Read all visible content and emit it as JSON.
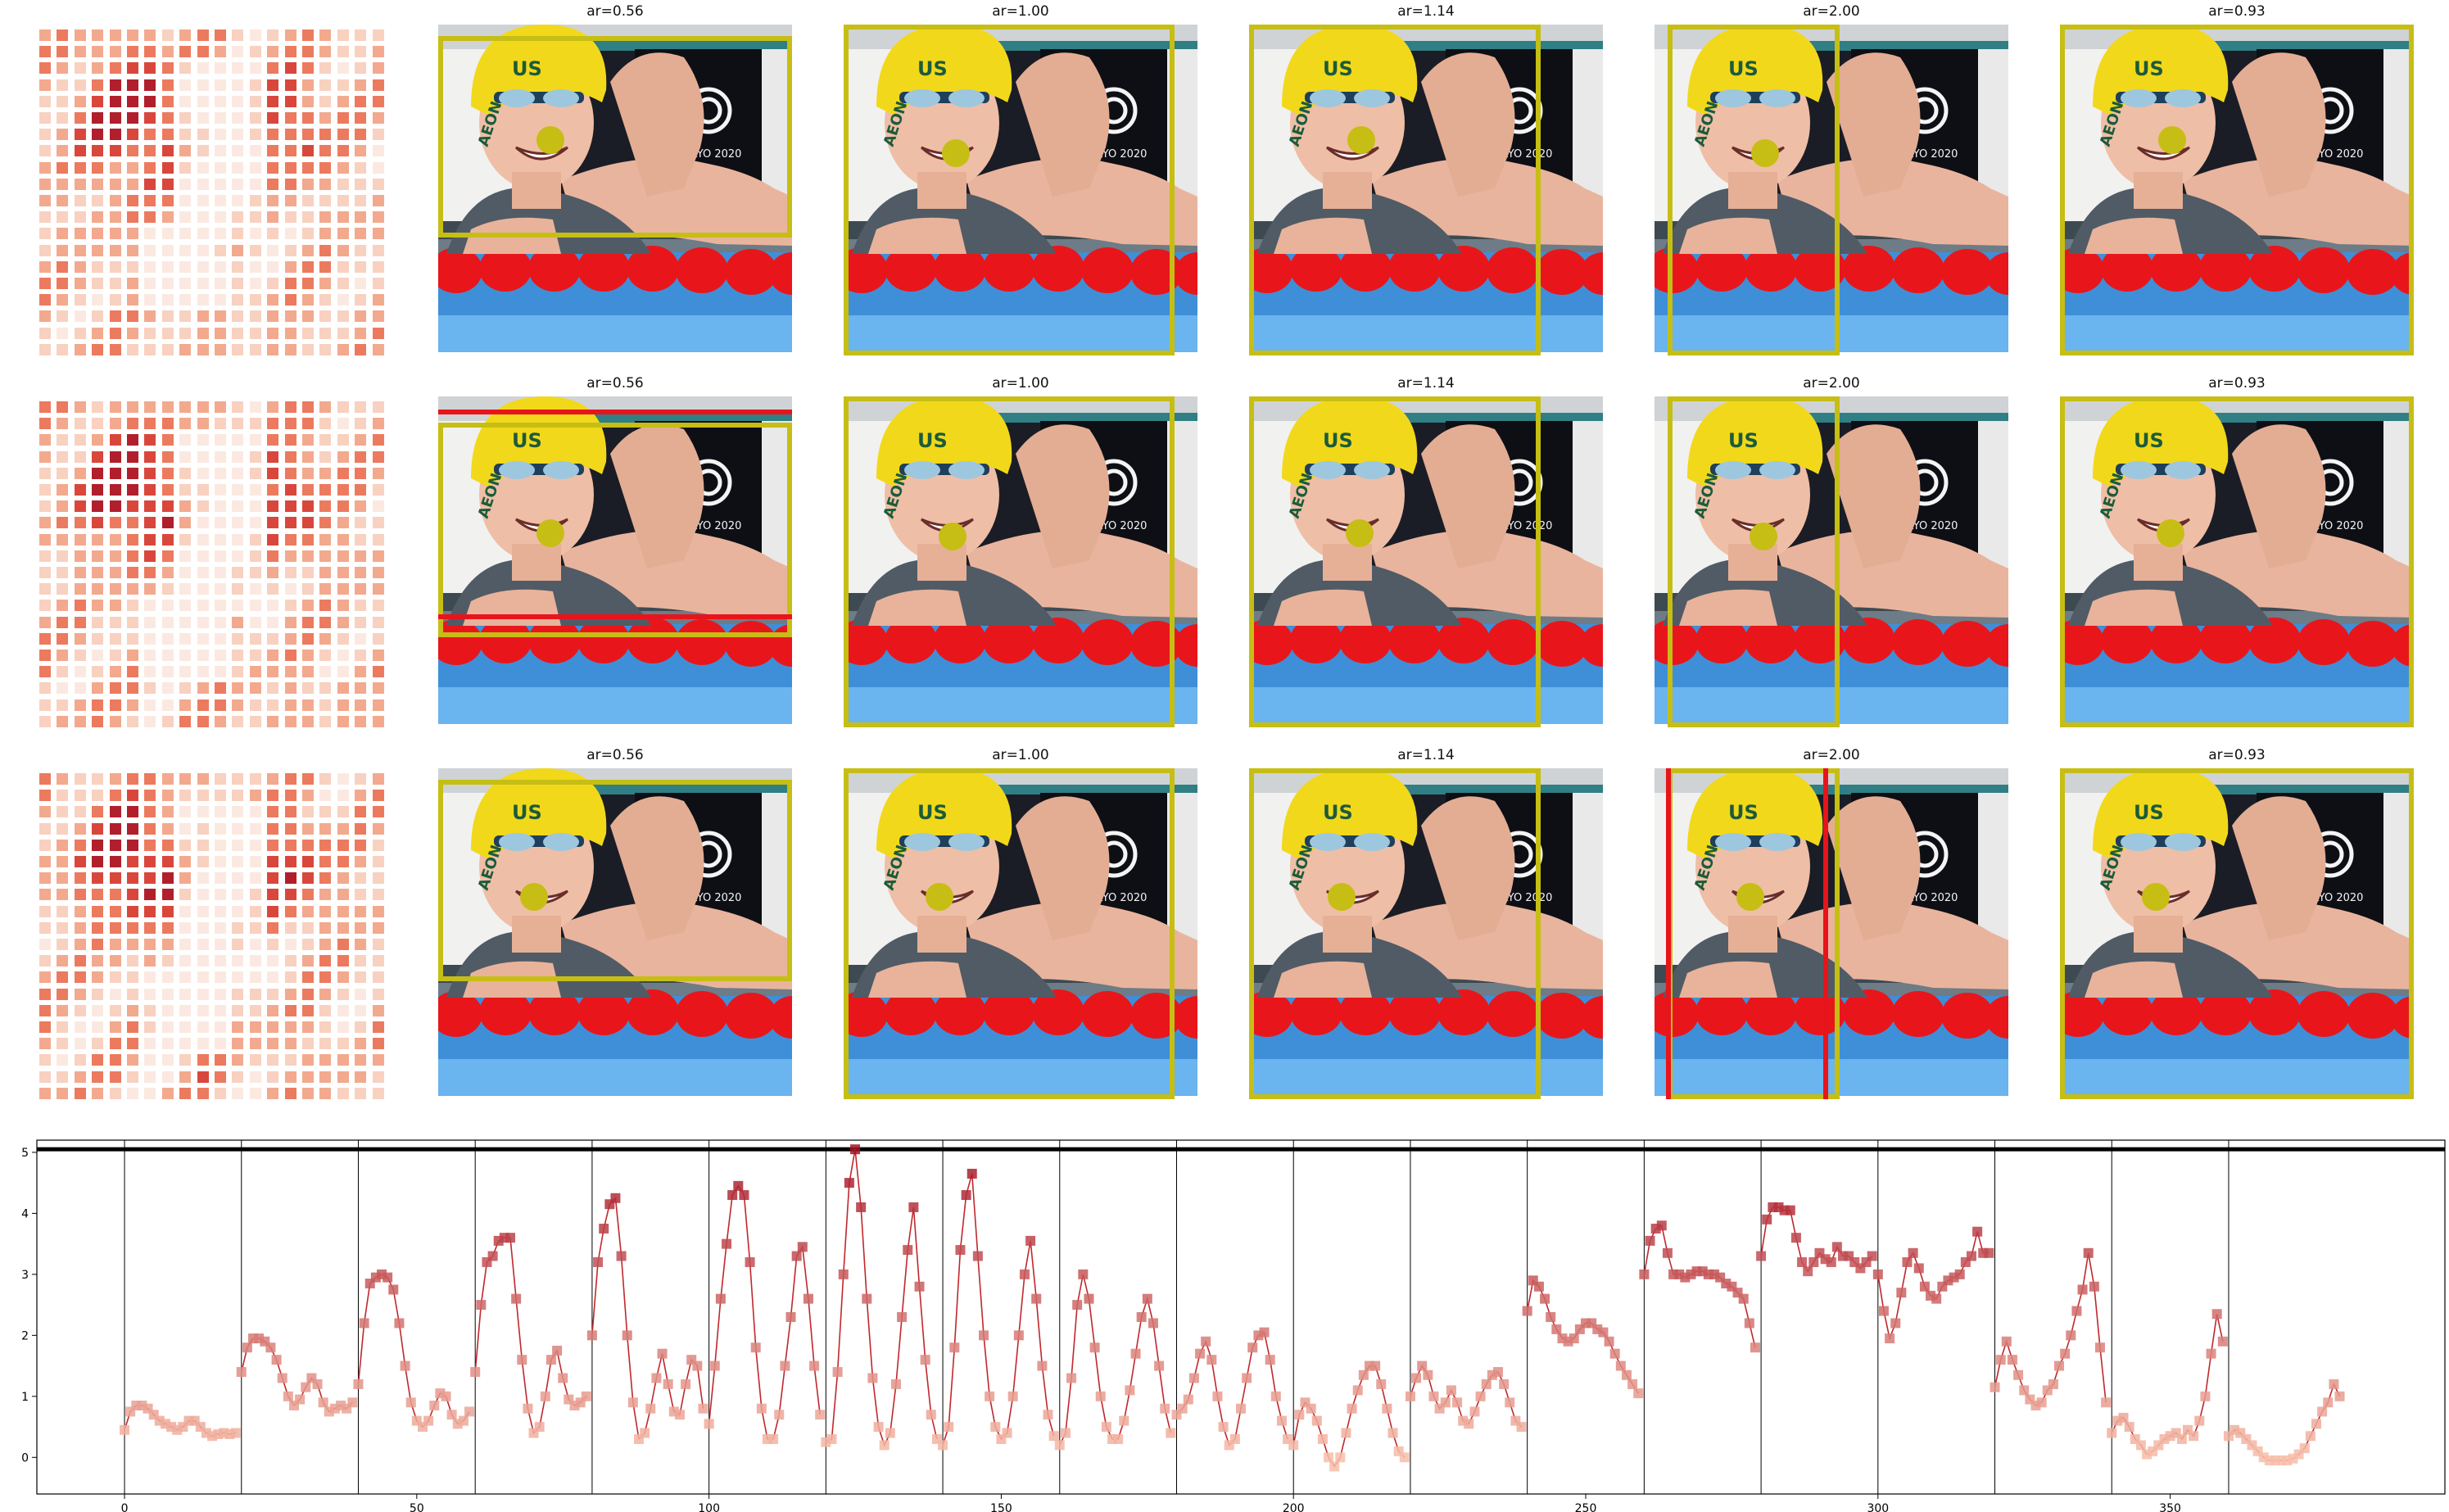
{
  "panel_titles": [
    "ar=0.56",
    "ar=1.00",
    "ar=1.14",
    "ar=2.00",
    "ar=0.93"
  ],
  "photo_text": {
    "cap_text": "US",
    "cap_name": "AEON",
    "logo_text": "TOKYO 2020"
  },
  "colors": {
    "box_yellow": "#c6be14",
    "box_red": "#e8141b",
    "line": "#c0282d",
    "marker_light": "#f7b49f",
    "marker_dark": "#b2182b"
  },
  "chart_data": {
    "type": "line",
    "title": "",
    "xlabel": "",
    "ylabel": "",
    "xlim": [
      -15,
      397
    ],
    "ylim": [
      -0.6,
      5.2
    ],
    "xticks": [
      0,
      50,
      100,
      150,
      200,
      250,
      300,
      350
    ],
    "yticks": [
      0,
      1,
      2,
      3,
      4,
      5
    ],
    "threshold_line": 5.05,
    "segment_boundaries": [
      0,
      20,
      40,
      60,
      80,
      100,
      120,
      140,
      160,
      180,
      200,
      220,
      240,
      260,
      280,
      300,
      320,
      340,
      360
    ],
    "segments": [
      {
        "start": 0,
        "values": [
          0.45,
          0.75,
          0.85,
          0.85,
          0.8,
          0.7,
          0.6,
          0.55,
          0.5,
          0.45,
          0.5,
          0.6,
          0.6,
          0.5,
          0.4,
          0.35,
          0.38,
          0.4,
          0.38,
          0.4
        ]
      },
      {
        "start": 20,
        "values": [
          1.4,
          1.8,
          1.95,
          1.95,
          1.9,
          1.8,
          1.6,
          1.3,
          1.0,
          0.85,
          0.95,
          1.15,
          1.3,
          1.2,
          0.9,
          0.75,
          0.8,
          0.85,
          0.8,
          0.9
        ]
      },
      {
        "start": 40,
        "values": [
          1.2,
          2.2,
          2.85,
          2.95,
          3.0,
          2.95,
          2.75,
          2.2,
          1.5,
          0.9,
          0.6,
          0.5,
          0.6,
          0.85,
          1.05,
          1.0,
          0.7,
          0.55,
          0.6,
          0.75
        ]
      },
      {
        "start": 60,
        "values": [
          1.4,
          2.5,
          3.2,
          3.3,
          3.55,
          3.6,
          3.6,
          2.6,
          1.6,
          0.8,
          0.4,
          0.5,
          1.0,
          1.6,
          1.75,
          1.3,
          0.95,
          0.85,
          0.9,
          1.0
        ]
      },
      {
        "start": 80,
        "values": [
          2.0,
          3.2,
          3.75,
          4.15,
          4.25,
          3.3,
          2.0,
          0.9,
          0.3,
          0.4,
          0.8,
          1.3,
          1.7,
          1.2,
          0.75,
          0.7,
          1.2,
          1.6,
          1.5,
          0.8
        ]
      },
      {
        "start": 100,
        "values": [
          0.55,
          1.5,
          2.6,
          3.5,
          4.3,
          4.45,
          4.3,
          3.2,
          1.8,
          0.8,
          0.3,
          0.3,
          0.7,
          1.5,
          2.3,
          3.3,
          3.45,
          2.6,
          1.5,
          0.7
        ]
      },
      {
        "start": 120,
        "values": [
          0.25,
          0.3,
          1.4,
          3.0,
          4.5,
          5.05,
          4.1,
          2.6,
          1.3,
          0.5,
          0.2,
          0.4,
          1.2,
          2.3,
          3.4,
          4.1,
          2.8,
          1.6,
          0.7,
          0.3
        ]
      },
      {
        "start": 140,
        "values": [
          0.2,
          0.5,
          1.8,
          3.4,
          4.3,
          4.65,
          3.3,
          2.0,
          1.0,
          0.5,
          0.3,
          0.4,
          1.0,
          2.0,
          3.0,
          3.55,
          2.6,
          1.5,
          0.7,
          0.35
        ]
      },
      {
        "start": 160,
        "values": [
          0.2,
          0.4,
          1.3,
          2.5,
          3.0,
          2.6,
          1.8,
          1.0,
          0.5,
          0.3,
          0.3,
          0.6,
          1.1,
          1.7,
          2.3,
          2.6,
          2.2,
          1.5,
          0.8,
          0.4
        ]
      },
      {
        "start": 180,
        "values": [
          0.7,
          0.8,
          0.95,
          1.3,
          1.7,
          1.9,
          1.6,
          1.0,
          0.5,
          0.2,
          0.3,
          0.8,
          1.3,
          1.8,
          2.0,
          2.05,
          1.6,
          1.0,
          0.6,
          0.3
        ]
      },
      {
        "start": 200,
        "values": [
          0.2,
          0.7,
          0.9,
          0.8,
          0.6,
          0.3,
          0.0,
          -0.15,
          0.0,
          0.4,
          0.8,
          1.1,
          1.35,
          1.5,
          1.5,
          1.2,
          0.8,
          0.4,
          0.1,
          0.0
        ]
      },
      {
        "start": 220,
        "values": [
          1.0,
          1.3,
          1.5,
          1.35,
          1.0,
          0.8,
          0.9,
          1.1,
          0.9,
          0.6,
          0.55,
          0.75,
          1.0,
          1.2,
          1.35,
          1.4,
          1.2,
          0.9,
          0.6,
          0.5
        ]
      },
      {
        "start": 240,
        "values": [
          2.4,
          2.9,
          2.8,
          2.6,
          2.3,
          2.1,
          1.95,
          1.9,
          1.95,
          2.1,
          2.2,
          2.2,
          2.1,
          2.05,
          1.9,
          1.7,
          1.5,
          1.35,
          1.2,
          1.05
        ]
      },
      {
        "start": 260,
        "values": [
          3.0,
          3.55,
          3.75,
          3.8,
          3.35,
          3.0,
          3.0,
          2.95,
          3.0,
          3.05,
          3.05,
          3.0,
          3.0,
          2.95,
          2.85,
          2.8,
          2.7,
          2.6,
          2.2,
          1.8
        ]
      },
      {
        "start": 280,
        "values": [
          3.3,
          3.9,
          4.1,
          4.1,
          4.05,
          4.05,
          3.6,
          3.2,
          3.05,
          3.2,
          3.35,
          3.25,
          3.2,
          3.45,
          3.3,
          3.3,
          3.2,
          3.1,
          3.2,
          3.3
        ]
      },
      {
        "start": 300,
        "values": [
          3.0,
          2.4,
          1.95,
          2.2,
          2.7,
          3.2,
          3.35,
          3.1,
          2.8,
          2.65,
          2.6,
          2.8,
          2.9,
          2.95,
          3.0,
          3.2,
          3.3,
          3.7,
          3.35,
          3.35
        ]
      },
      {
        "start": 320,
        "values": [
          1.15,
          1.6,
          1.9,
          1.6,
          1.35,
          1.1,
          0.95,
          0.85,
          0.9,
          1.1,
          1.2,
          1.5,
          1.7,
          2.0,
          2.4,
          2.75,
          3.35,
          2.8,
          1.8,
          0.9
        ]
      },
      {
        "start": 340,
        "values": [
          0.4,
          0.6,
          0.65,
          0.5,
          0.3,
          0.2,
          0.05,
          0.1,
          0.2,
          0.3,
          0.35,
          0.4,
          0.3,
          0.45,
          0.35,
          0.6,
          1.0,
          1.7,
          2.35,
          1.9
        ]
      },
      {
        "start": 360,
        "values": [
          0.35,
          0.45,
          0.4,
          0.3,
          0.2,
          0.1,
          0.0,
          -0.05,
          -0.05,
          -0.05,
          -0.05,
          -0.02,
          0.05,
          0.15,
          0.35,
          0.55,
          0.75,
          0.9,
          1.2,
          1.0
        ]
      }
    ]
  }
}
